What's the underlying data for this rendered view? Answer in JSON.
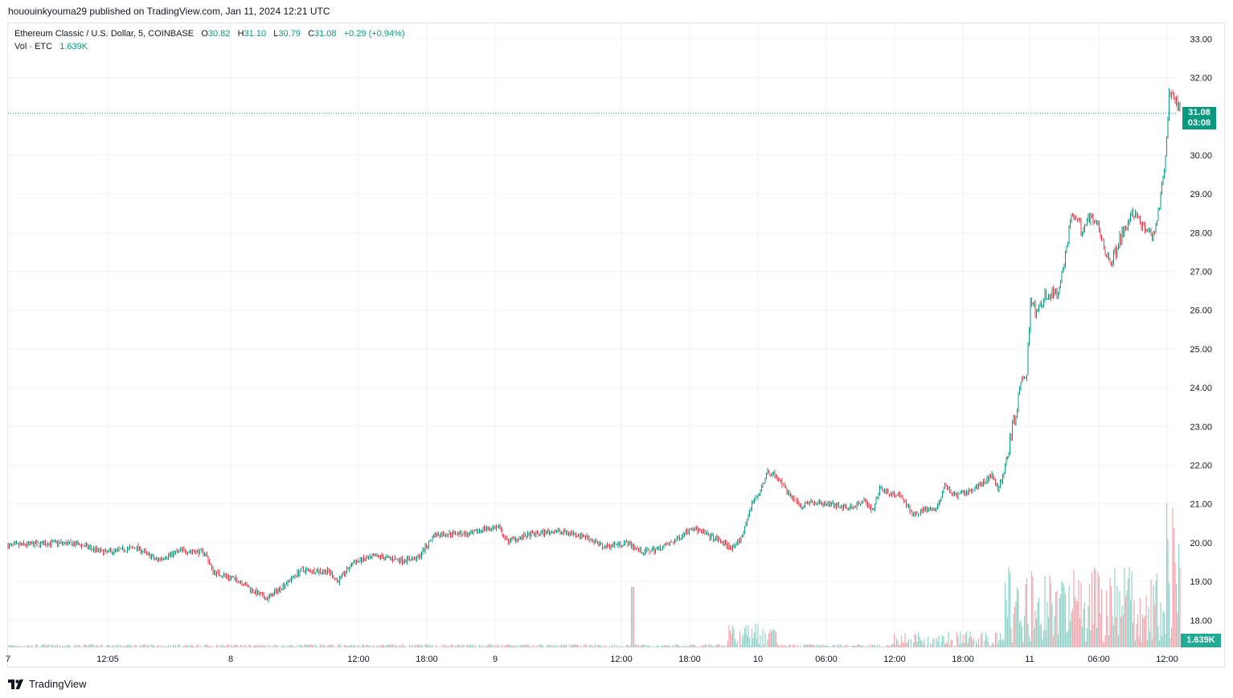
{
  "publisher_line": "hououinkyouma29 published on TradingView.com, Jan 11, 2024 12:21 UTC",
  "legend": {
    "symbol": "Ethereum Classic / U.S. Dollar, 5, COINBASE",
    "o_label": "O",
    "o_value": "30.82",
    "h_label": "H",
    "h_value": "31.10",
    "l_label": "L",
    "l_value": "30.79",
    "c_label": "C",
    "c_value": "31.08",
    "change": "+0.29 (+0.94%)",
    "vol_label": "Vol · ETC",
    "vol_value": "1.639K"
  },
  "last_price": {
    "price": "31.08",
    "countdown": "03:08"
  },
  "volume_tag": "1.639K",
  "brand": "TradingView",
  "colors": {
    "up": "#089981",
    "down": "#f23645",
    "vol_up": "#8fd3c8",
    "vol_down": "#f5a6ae",
    "grid": "#f0f3fa"
  },
  "chart_data": {
    "type": "candlestick",
    "title": "Ethereum Classic / U.S. Dollar, 5, COINBASE",
    "ylim": [
      17.3,
      33.4
    ],
    "y_ticks": [
      "33.00",
      "32.00",
      "31.00",
      "30.00",
      "29.00",
      "28.00",
      "27.00",
      "26.00",
      "25.00",
      "24.00",
      "23.00",
      "22.00",
      "21.00",
      "20.00",
      "19.00",
      "18.00"
    ],
    "x_ticks": [
      "7",
      "12:05",
      "8",
      "12:00",
      "18:00",
      "9",
      "12:00",
      "18:00",
      "10",
      "06:00",
      "12:00",
      "18:00",
      "11",
      "06:00",
      "12:00"
    ],
    "price_path": [
      [
        0,
        19.92
      ],
      [
        60,
        20.0
      ],
      [
        90,
        19.95
      ],
      [
        120,
        19.75
      ],
      [
        160,
        19.88
      ],
      [
        185,
        19.55
      ],
      [
        215,
        19.8
      ],
      [
        245,
        19.75
      ],
      [
        255,
        19.25
      ],
      [
        290,
        19.0
      ],
      [
        305,
        18.75
      ],
      [
        322,
        18.55
      ],
      [
        340,
        18.85
      ],
      [
        365,
        19.3
      ],
      [
        400,
        19.25
      ],
      [
        410,
        19.0
      ],
      [
        430,
        19.5
      ],
      [
        460,
        19.65
      ],
      [
        490,
        19.55
      ],
      [
        510,
        19.6
      ],
      [
        530,
        20.2
      ],
      [
        560,
        20.25
      ],
      [
        575,
        20.2
      ],
      [
        590,
        20.35
      ],
      [
        610,
        20.4
      ],
      [
        620,
        20.05
      ],
      [
        650,
        20.2
      ],
      [
        680,
        20.3
      ],
      [
        700,
        20.25
      ],
      [
        720,
        20.15
      ],
      [
        740,
        19.9
      ],
      [
        770,
        20.0
      ],
      [
        790,
        19.75
      ],
      [
        810,
        19.85
      ],
      [
        830,
        20.05
      ],
      [
        850,
        20.4
      ],
      [
        870,
        20.2
      ],
      [
        890,
        20.0
      ],
      [
        900,
        19.85
      ],
      [
        912,
        20.1
      ],
      [
        925,
        21.0
      ],
      [
        935,
        21.3
      ],
      [
        945,
        21.8
      ],
      [
        955,
        21.75
      ],
      [
        970,
        21.3
      ],
      [
        985,
        20.95
      ],
      [
        1000,
        21.05
      ],
      [
        1020,
        21.0
      ],
      [
        1050,
        20.9
      ],
      [
        1065,
        21.1
      ],
      [
        1075,
        20.8
      ],
      [
        1085,
        21.4
      ],
      [
        1100,
        21.25
      ],
      [
        1110,
        21.2
      ],
      [
        1125,
        20.75
      ],
      [
        1140,
        20.85
      ],
      [
        1155,
        20.85
      ],
      [
        1165,
        21.45
      ],
      [
        1180,
        21.2
      ],
      [
        1195,
        21.3
      ],
      [
        1210,
        21.5
      ],
      [
        1225,
        21.75
      ],
      [
        1232,
        21.35
      ],
      [
        1240,
        21.9
      ],
      [
        1250,
        23.0
      ],
      [
        1260,
        24.0
      ],
      [
        1268,
        24.5
      ],
      [
        1272,
        26.3
      ],
      [
        1280,
        25.9
      ],
      [
        1290,
        26.4
      ],
      [
        1305,
        26.4
      ],
      [
        1315,
        27.4
      ],
      [
        1323,
        28.5
      ],
      [
        1335,
        28.1
      ],
      [
        1348,
        28.5
      ],
      [
        1358,
        28.1
      ],
      [
        1365,
        27.6
      ],
      [
        1372,
        27.2
      ],
      [
        1385,
        27.9
      ],
      [
        1400,
        28.5
      ],
      [
        1410,
        28.2
      ],
      [
        1425,
        27.85
      ],
      [
        1432,
        28.7
      ],
      [
        1440,
        30.0
      ],
      [
        1445,
        31.7
      ],
      [
        1452,
        31.5
      ],
      [
        1458,
        31.08
      ]
    ]
  }
}
